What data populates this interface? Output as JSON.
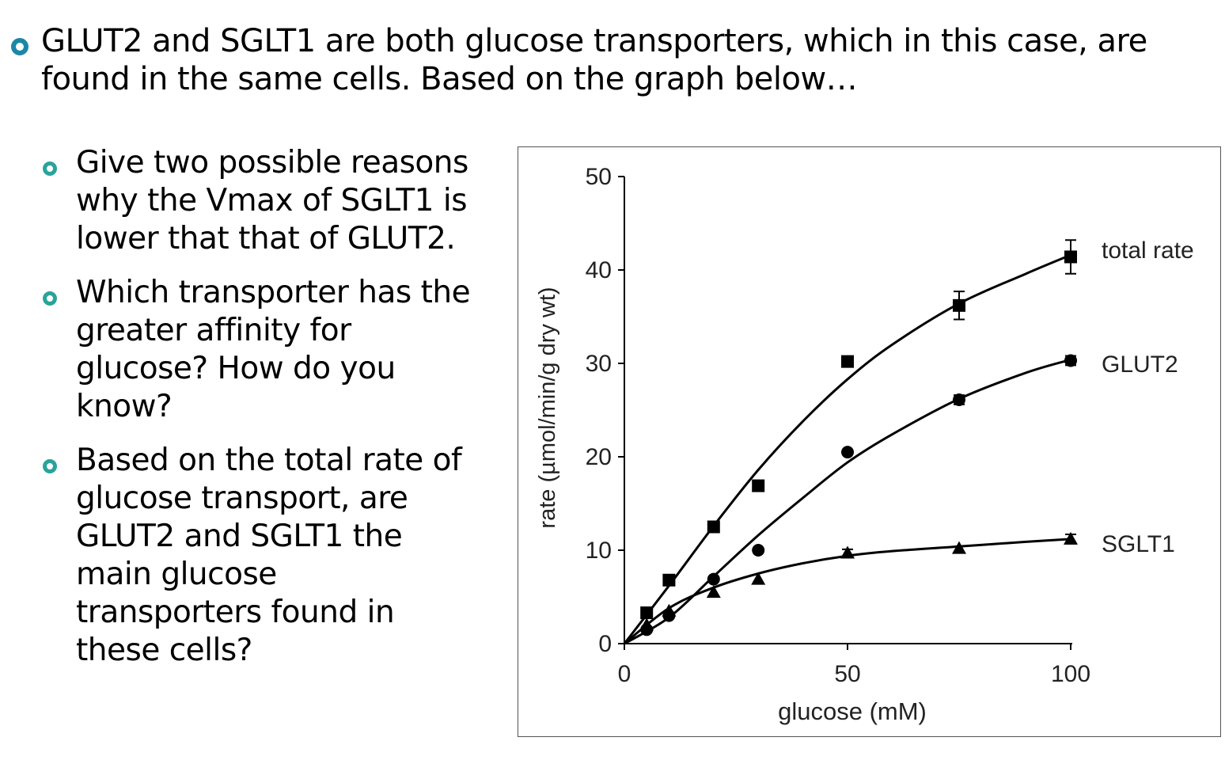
{
  "slide": {
    "main_bullet": "GLUT2 and SGLT1 are both glucose transporters, which in this case, are found in the same cells.  Based on the graph below…",
    "sub_bullets": [
      "Give two possible reasons why the Vmax of SGLT1 is lower that that of GLUT2.",
      "Which transporter has the greater affinity for glucose?  How do you know?",
      "Based on the total rate of glucose transport, are GLUT2 and SGLT1 the main glucose transporters found in these cells?"
    ],
    "colors": {
      "main_bullet": "#1b87a6",
      "sub_bullet": "#2aa39a"
    }
  },
  "chart_data": {
    "type": "scatter",
    "xlabel": "glucose (mM)",
    "ylabel": "rate (µmol/min/g dry wt)",
    "xlim": [
      0,
      100
    ],
    "ylim": [
      0,
      50
    ],
    "xticks": [
      0,
      50,
      100
    ],
    "yticks": [
      0,
      10,
      20,
      30,
      40,
      50
    ],
    "grid": false,
    "fitted_curves": true,
    "series": [
      {
        "name": "total rate",
        "marker": "square",
        "x": [
          5,
          10,
          20,
          30,
          50,
          75,
          100
        ],
        "y": [
          3.3,
          6.8,
          12.5,
          16.9,
          30.2,
          36.2,
          41.4
        ],
        "error_bars": [
          0,
          0,
          0,
          0,
          0,
          1.5,
          1.8
        ]
      },
      {
        "name": "GLUT2",
        "marker": "circle",
        "x": [
          5,
          10,
          20,
          30,
          50,
          75,
          100
        ],
        "y": [
          1.5,
          3.0,
          6.9,
          10.0,
          20.5,
          26.1,
          30.3
        ],
        "error_bars": [
          0,
          0,
          0,
          0,
          0,
          0.5,
          0.5
        ]
      },
      {
        "name": "SGLT1",
        "marker": "triangle",
        "x": [
          5,
          10,
          20,
          30,
          50,
          75,
          100
        ],
        "y": [
          2.0,
          3.5,
          5.5,
          6.9,
          9.7,
          10.2,
          11.2
        ],
        "error_bars": [
          0,
          0,
          0,
          0,
          0.4,
          0,
          0.5
        ]
      }
    ],
    "curves": [
      {
        "name": "total rate",
        "x": [
          0,
          10,
          20,
          30,
          40,
          50,
          60,
          75,
          90,
          100
        ],
        "y": [
          0,
          6.2,
          12.6,
          18.6,
          23.8,
          28.3,
          32.0,
          36.4,
          39.6,
          41.6
        ]
      },
      {
        "name": "GLUT2",
        "x": [
          0,
          10,
          20,
          30,
          40,
          50,
          60,
          75,
          90,
          100
        ],
        "y": [
          0,
          2.8,
          7.2,
          11.6,
          15.6,
          19.4,
          22.4,
          26.2,
          29.0,
          30.4
        ]
      },
      {
        "name": "SGLT1",
        "x": [
          0,
          10,
          20,
          30,
          40,
          50,
          60,
          75,
          90,
          100
        ],
        "y": [
          0,
          3.8,
          6.0,
          7.5,
          8.6,
          9.4,
          9.9,
          10.4,
          10.9,
          11.2
        ]
      }
    ]
  }
}
